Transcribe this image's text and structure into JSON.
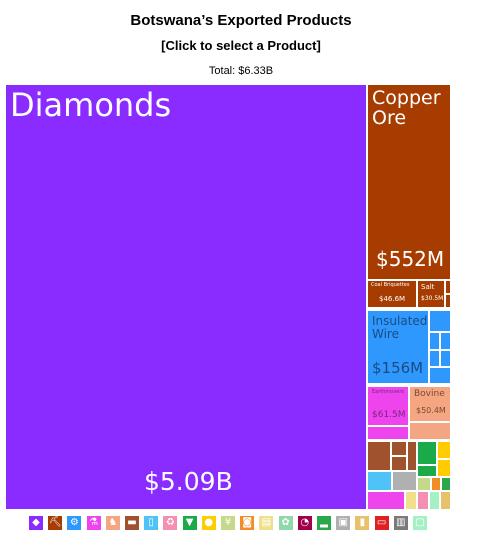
{
  "header": {
    "title": "Botswana’s Exported Products",
    "subtitle": "[Click to select a Product]",
    "total": "Total: $6.33B"
  },
  "chart_data": {
    "type": "treemap",
    "items": [
      {
        "name": "Diamonds",
        "value_label": "$5.09B",
        "value": 5090,
        "color": "#8a2bff"
      },
      {
        "name": "Copper Ore",
        "value_label": "$552M",
        "value": 552,
        "color": "#a63c00"
      },
      {
        "name": "Coal Briquettes",
        "value_label": "$46.6M",
        "value": 46.6,
        "color": "#a63c00"
      },
      {
        "name": "Salt",
        "value_label": "$30.5M",
        "value": 30.5,
        "color": "#a63c00"
      },
      {
        "name": "Insulated Wire",
        "value_label": "$156M",
        "value": 156,
        "color": "#2f98ff"
      },
      {
        "name": "Earthmovers",
        "value_label": "$61.5M",
        "value": 61.5,
        "color": "#ee44ee"
      },
      {
        "name": "Bovine",
        "value_label": "$50.4M",
        "value": 50.4,
        "color": "#f4a582"
      }
    ],
    "legend_icons": [
      {
        "icon": "diamond-icon",
        "color": "#8a2bff",
        "glyph": "◆"
      },
      {
        "icon": "pickaxe-icon",
        "color": "#a63c00",
        "glyph": "⛏"
      },
      {
        "icon": "gear-icon",
        "color": "#2f98ff",
        "glyph": "⚙"
      },
      {
        "icon": "flask-icon",
        "color": "#ee44ee",
        "glyph": "⚗"
      },
      {
        "icon": "cow-icon",
        "color": "#f4a582",
        "glyph": "♞"
      },
      {
        "icon": "anvil-icon",
        "color": "#a0522d",
        "glyph": "▬"
      },
      {
        "icon": "glass-icon",
        "color": "#4fc3f7",
        "glyph": "▯"
      },
      {
        "icon": "recycle-icon",
        "color": "#f48fb1",
        "glyph": "♻"
      },
      {
        "icon": "shirt-icon",
        "color": "#1aaa4a",
        "glyph": "▼"
      },
      {
        "icon": "lemon-icon",
        "color": "#ffcc00",
        "glyph": "●"
      },
      {
        "icon": "wheat-icon",
        "color": "#c6d98a",
        "glyph": "¥"
      },
      {
        "icon": "mineral-icon",
        "color": "#f28c28",
        "glyph": "◙"
      },
      {
        "icon": "paper-icon",
        "color": "#f0e08c",
        "glyph": "▤"
      },
      {
        "icon": "shell-icon",
        "color": "#8fd9a8",
        "glyph": "✿"
      },
      {
        "icon": "gauge-icon",
        "color": "#a0004a",
        "glyph": "◔"
      },
      {
        "icon": "car-icon",
        "color": "#2ba84a",
        "glyph": "▂"
      },
      {
        "icon": "box-icon",
        "color": "#b0b0b0",
        "glyph": "▣"
      },
      {
        "icon": "fuel-icon",
        "color": "#e8c26a",
        "glyph": "▮"
      },
      {
        "icon": "battery-icon",
        "color": "#e02020",
        "glyph": "▭"
      },
      {
        "icon": "chair-icon",
        "color": "#7a7a7a",
        "glyph": "▥"
      },
      {
        "icon": "art-icon",
        "color": "#a6f0c6",
        "glyph": "▢"
      }
    ]
  }
}
